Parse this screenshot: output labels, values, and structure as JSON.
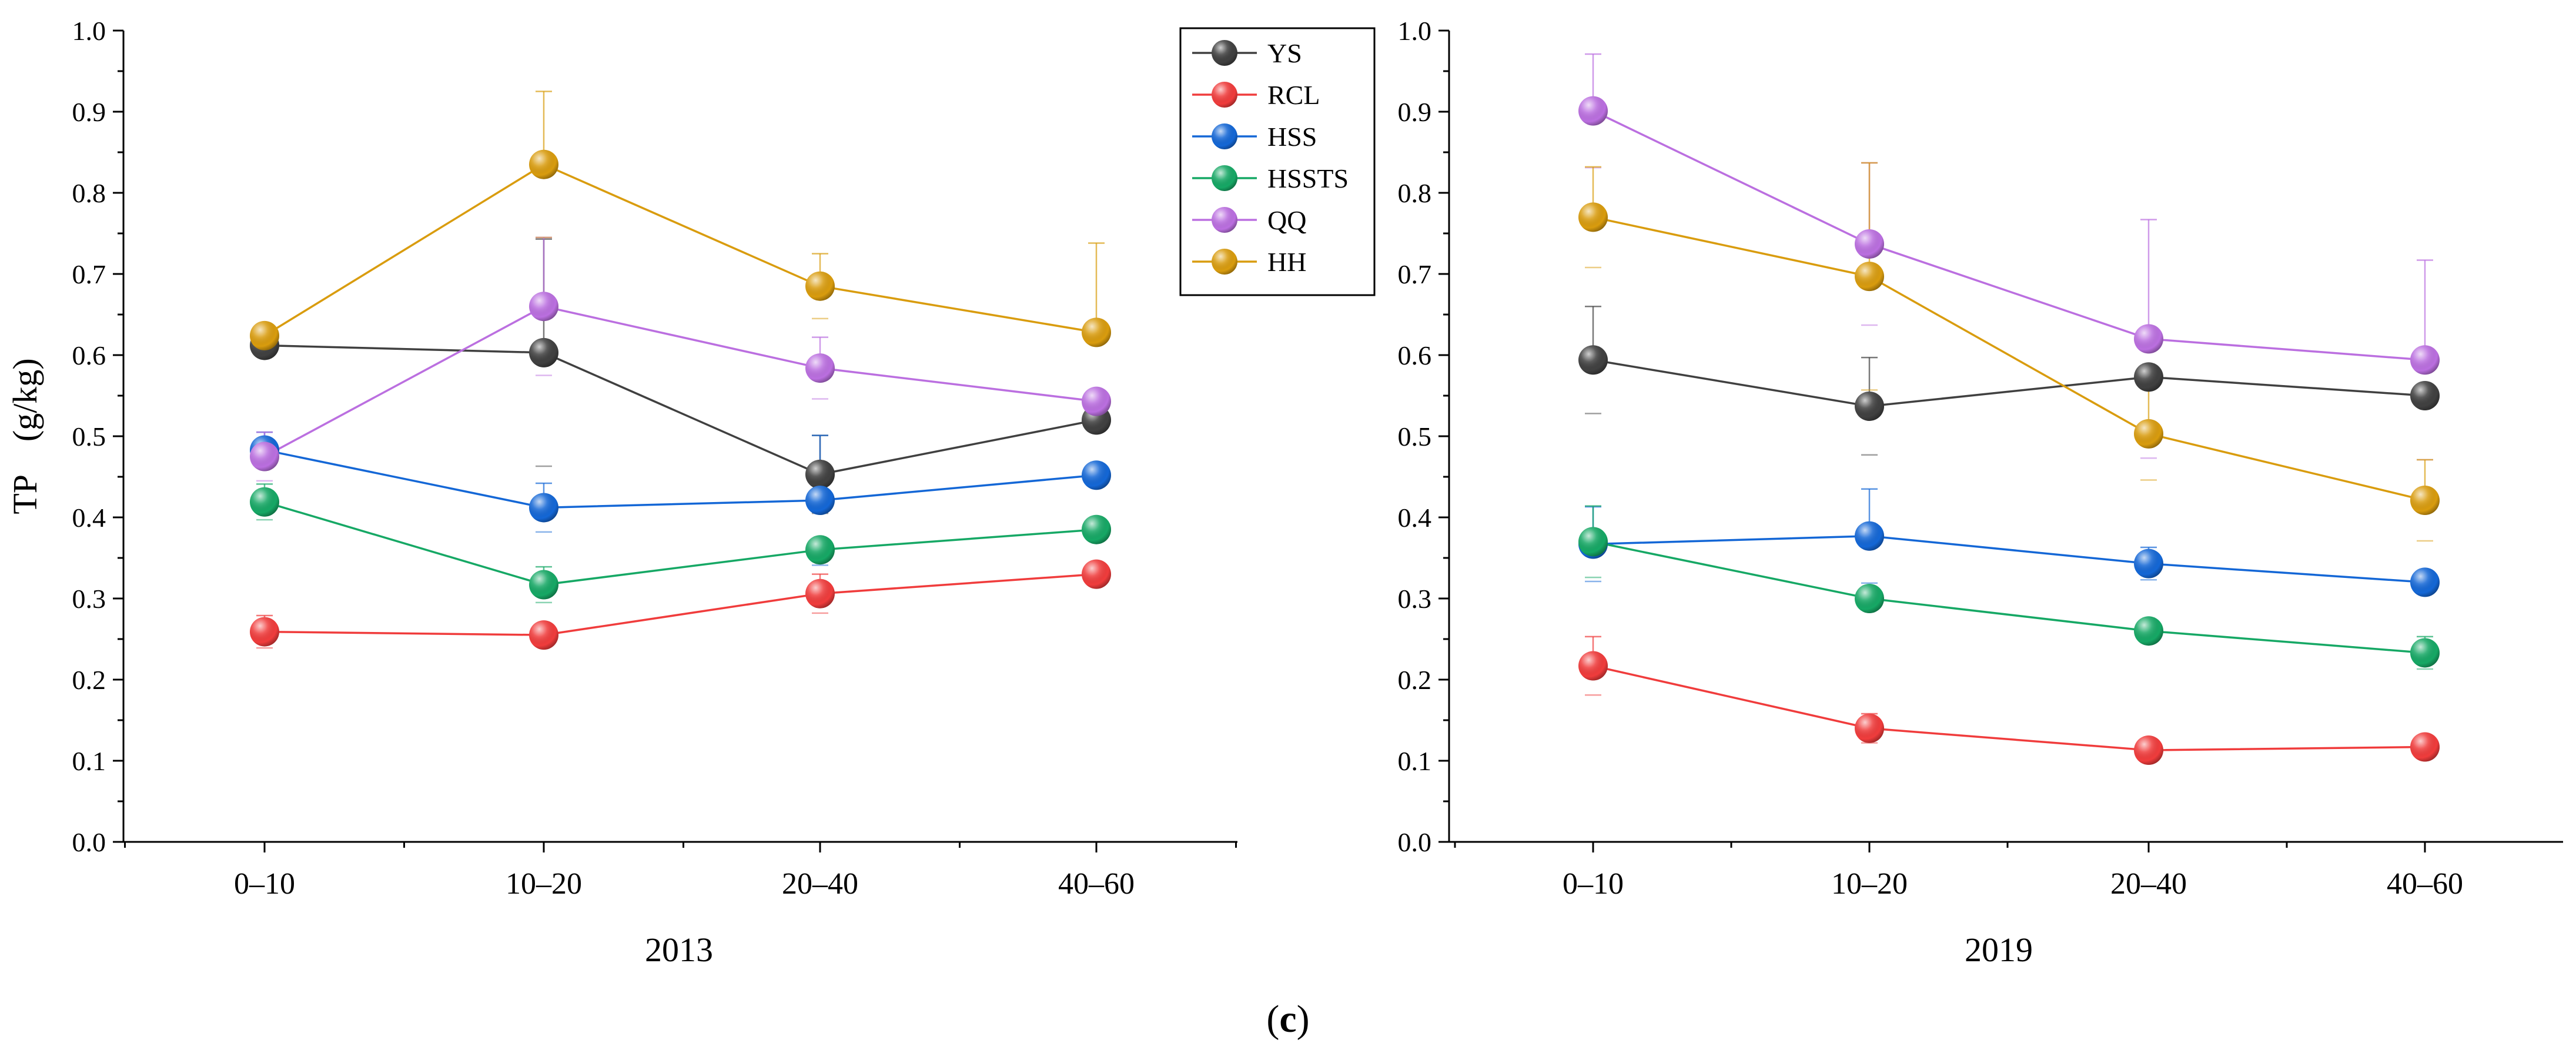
{
  "caption": {
    "open": "(",
    "letter": "c",
    "close": ")"
  },
  "chart_data": [
    {
      "type": "line",
      "title": "2013",
      "xlabel": "2013",
      "ylabel": "TP　(g/kg)",
      "categories": [
        "0–10",
        "10–20",
        "20–40",
        "40–60"
      ],
      "ylim": [
        0.0,
        1.0
      ],
      "yticks": [
        "0.0",
        "0.1",
        "0.2",
        "0.3",
        "0.4",
        "0.5",
        "0.6",
        "0.7",
        "0.8",
        "0.9",
        "1.0"
      ],
      "grid": false,
      "series": [
        {
          "name": "YS",
          "color": "#404040",
          "values": [
            0.612,
            0.603,
            0.453,
            0.52
          ],
          "errors": [
            0.012,
            0.14,
            0.048,
            0.01
          ]
        },
        {
          "name": "RCL",
          "color": "#f03c3c",
          "values": [
            0.259,
            0.255,
            0.306,
            0.33
          ],
          "errors": [
            0.02,
            0.012,
            0.024,
            0.01
          ]
        },
        {
          "name": "HSS",
          "color": "#1467d6",
          "values": [
            0.483,
            0.412,
            0.421,
            0.452
          ],
          "errors": [
            0.022,
            0.03,
            0.08,
            0.01
          ]
        },
        {
          "name": "HSSTS",
          "color": "#16a865",
          "values": [
            0.419,
            0.317,
            0.36,
            0.385
          ],
          "errors": [
            0.022,
            0.022,
            0.012,
            0.01
          ]
        },
        {
          "name": "QQ",
          "color": "#bb6fe0",
          "values": [
            0.475,
            0.66,
            0.584,
            0.543
          ],
          "errors": [
            0.03,
            0.085,
            0.038,
            0.01
          ]
        },
        {
          "name": "HH",
          "color": "#d99c0e",
          "values": [
            0.624,
            0.835,
            0.685,
            0.628
          ],
          "errors": [
            0.01,
            0.09,
            0.04,
            0.11
          ]
        }
      ]
    },
    {
      "type": "line",
      "title": "2019",
      "xlabel": "2019",
      "ylabel": "",
      "categories": [
        "0–10",
        "10–20",
        "20–40",
        "40–60"
      ],
      "ylim": [
        0.0,
        1.0
      ],
      "yticks": [
        "0.0",
        "0.1",
        "0.2",
        "0.3",
        "0.4",
        "0.5",
        "0.6",
        "0.7",
        "0.8",
        "0.9",
        "1.0"
      ],
      "grid": false,
      "legend": "top-left",
      "series": [
        {
          "name": "YS",
          "color": "#404040",
          "values": [
            0.594,
            0.537,
            0.573,
            0.55
          ],
          "errors": [
            0.066,
            0.06,
            0.01,
            0.01
          ]
        },
        {
          "name": "RCL",
          "color": "#f03c3c",
          "values": [
            0.217,
            0.14,
            0.113,
            0.117
          ],
          "errors": [
            0.036,
            0.018,
            0.01,
            0.01
          ]
        },
        {
          "name": "HSS",
          "color": "#1467d6",
          "values": [
            0.367,
            0.377,
            0.343,
            0.32
          ],
          "errors": [
            0.046,
            0.058,
            0.02,
            0.01
          ]
        },
        {
          "name": "HSSTS",
          "color": "#16a865",
          "values": [
            0.37,
            0.3,
            0.26,
            0.233
          ],
          "errors": [
            0.044,
            0.012,
            0.01,
            0.02
          ]
        },
        {
          "name": "QQ",
          "color": "#bb6fe0",
          "values": [
            0.901,
            0.737,
            0.62,
            0.594
          ],
          "errors": [
            0.07,
            0.1,
            0.147,
            0.123
          ]
        },
        {
          "name": "HH",
          "color": "#d99c0e",
          "values": [
            0.77,
            0.697,
            0.503,
            0.421
          ],
          "errors": [
            0.062,
            0.14,
            0.057,
            0.05
          ]
        }
      ]
    }
  ]
}
